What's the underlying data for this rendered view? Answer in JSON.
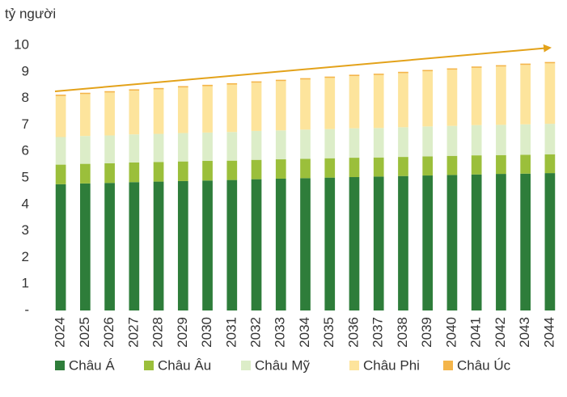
{
  "chart_data": {
    "type": "stacked_bar",
    "y_label": "tỷ người",
    "categories": [
      "2024",
      "2025",
      "2026",
      "2027",
      "2028",
      "2029",
      "2030",
      "2031",
      "2032",
      "2033",
      "2034",
      "2035",
      "2036",
      "2037",
      "2038",
      "2039",
      "2040",
      "2041",
      "2042",
      "2043",
      "2044"
    ],
    "series": [
      {
        "name": "Châu Á",
        "color": "#2e7d3a",
        "values": [
          4.76,
          4.79,
          4.81,
          4.84,
          4.86,
          4.88,
          4.9,
          4.92,
          4.95,
          4.97,
          4.99,
          5.01,
          5.03,
          5.05,
          5.07,
          5.09,
          5.11,
          5.13,
          5.15,
          5.16,
          5.18
        ]
      },
      {
        "name": "Châu Âu",
        "color": "#9bbf3b",
        "values": [
          0.74,
          0.74,
          0.74,
          0.74,
          0.74,
          0.74,
          0.74,
          0.73,
          0.73,
          0.73,
          0.73,
          0.73,
          0.73,
          0.72,
          0.72,
          0.72,
          0.72,
          0.72,
          0.71,
          0.71,
          0.71
        ]
      },
      {
        "name": "Châu Mỹ",
        "color": "#dcedc8",
        "values": [
          1.04,
          1.05,
          1.05,
          1.06,
          1.06,
          1.07,
          1.07,
          1.08,
          1.09,
          1.09,
          1.1,
          1.1,
          1.11,
          1.11,
          1.12,
          1.13,
          1.13,
          1.14,
          1.14,
          1.15,
          1.15
        ]
      },
      {
        "name": "Châu Phi",
        "color": "#fde49c",
        "values": [
          1.55,
          1.58,
          1.62,
          1.65,
          1.68,
          1.72,
          1.75,
          1.79,
          1.82,
          1.86,
          1.89,
          1.93,
          1.97,
          2.0,
          2.04,
          2.08,
          2.12,
          2.16,
          2.2,
          2.24,
          2.28
        ]
      },
      {
        "name": "Châu Úc",
        "color": "#f4b54a",
        "values": [
          0.05,
          0.05,
          0.05,
          0.05,
          0.05,
          0.05,
          0.05,
          0.05,
          0.05,
          0.05,
          0.05,
          0.05,
          0.05,
          0.05,
          0.05,
          0.05,
          0.05,
          0.05,
          0.05,
          0.05,
          0.05
        ]
      }
    ],
    "ylim": [
      0,
      10
    ],
    "yticks": [
      {
        "value": 0,
        "label": "-"
      },
      1,
      2,
      3,
      4,
      5,
      6,
      7,
      8,
      9,
      10
    ],
    "grid": false,
    "legend": "bottom"
  }
}
